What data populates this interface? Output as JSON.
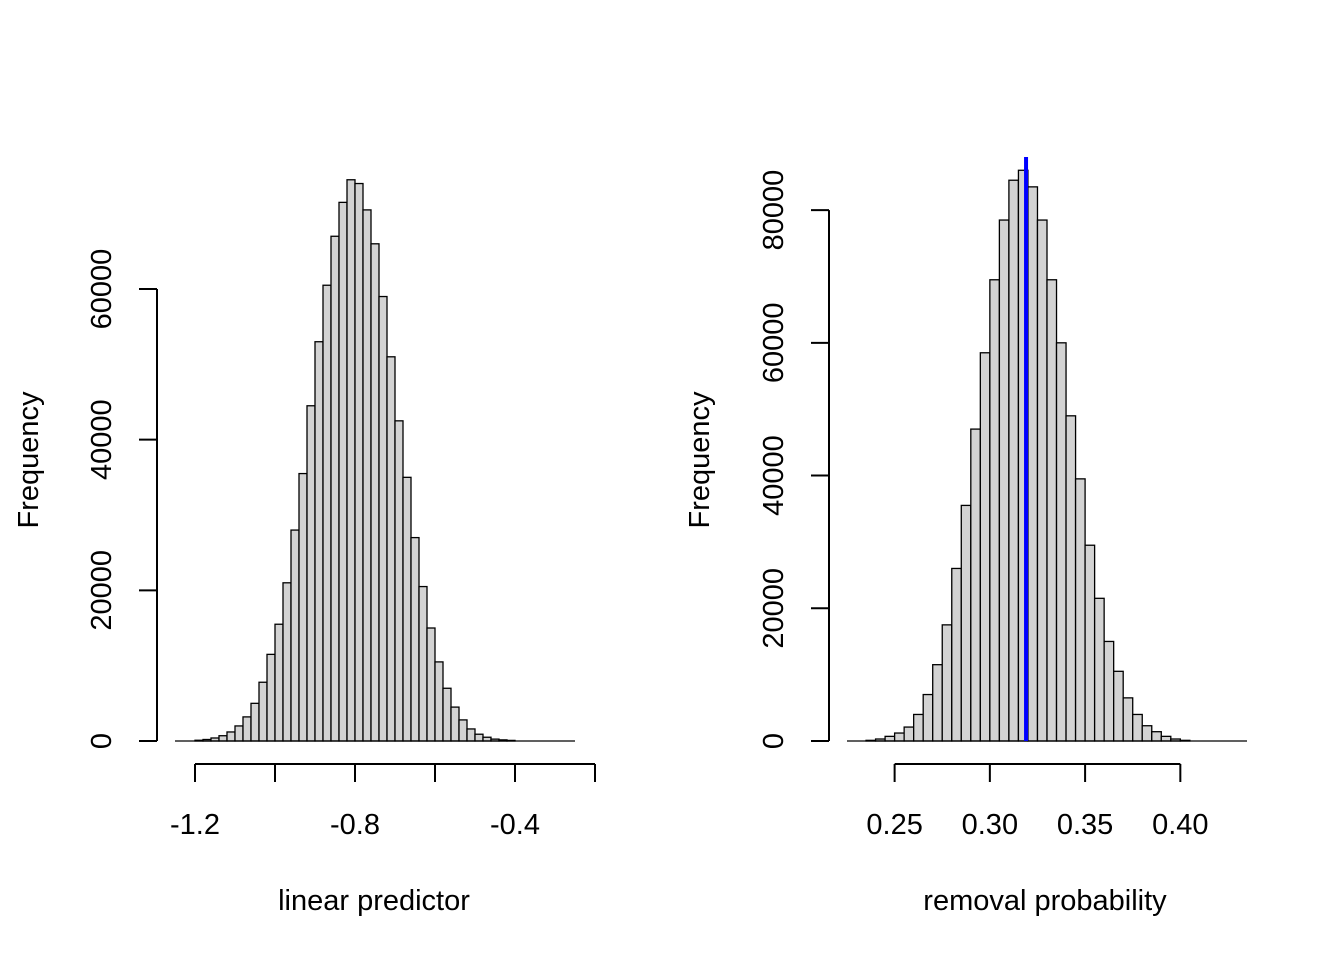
{
  "chart_data": [
    {
      "type": "bar",
      "xlabel": "linear predictor",
      "ylabel": "Frequency",
      "title": "",
      "xlim": [
        -1.25,
        -0.25
      ],
      "ylim": [
        0,
        75000
      ],
      "x_ticks": [
        -1.2,
        -1.0,
        -0.8,
        -0.6,
        -0.4,
        -0.2
      ],
      "x_tick_labels": [
        "-1.2",
        "",
        "-0.8",
        "",
        "-0.4",
        ""
      ],
      "y_ticks": [
        0,
        20000,
        40000,
        60000
      ],
      "y_tick_labels": [
        "0",
        "20000",
        "40000",
        "60000"
      ],
      "bin_start": -1.2,
      "bin_width": 0.02,
      "values": [
        100,
        200,
        400,
        700,
        1200,
        2000,
        3200,
        5000,
        7800,
        11500,
        15500,
        21000,
        28000,
        35500,
        44500,
        53000,
        60500,
        67000,
        71500,
        74500,
        74000,
        70500,
        66000,
        59000,
        51000,
        42500,
        35000,
        27000,
        20500,
        15000,
        10500,
        7000,
        4500,
        2800,
        1600,
        900,
        500,
        250,
        150,
        80
      ]
    },
    {
      "type": "bar",
      "xlabel": "removal probability",
      "ylabel": "Frequency",
      "title": "",
      "xlim": [
        0.225,
        0.435
      ],
      "ylim": [
        0,
        88000
      ],
      "x_ticks": [
        0.25,
        0.3,
        0.35,
        0.4
      ],
      "x_tick_labels": [
        "0.25",
        "0.30",
        "0.35",
        "0.40"
      ],
      "y_ticks": [
        0,
        20000,
        40000,
        60000,
        80000
      ],
      "y_tick_labels": [
        "0",
        "20000",
        "40000",
        "60000",
        "80000"
      ],
      "bin_start": 0.235,
      "bin_width": 0.005,
      "values": [
        100,
        300,
        700,
        1200,
        2100,
        4000,
        7000,
        11500,
        17500,
        26000,
        35500,
        47000,
        58500,
        69500,
        78500,
        84500,
        86000,
        83500,
        78500,
        69500,
        60000,
        49000,
        39500,
        29500,
        21500,
        15000,
        10500,
        6500,
        4000,
        2300,
        1400,
        700,
        300,
        100
      ],
      "vline": {
        "x": 0.319,
        "color": "#0000ff"
      }
    }
  ]
}
